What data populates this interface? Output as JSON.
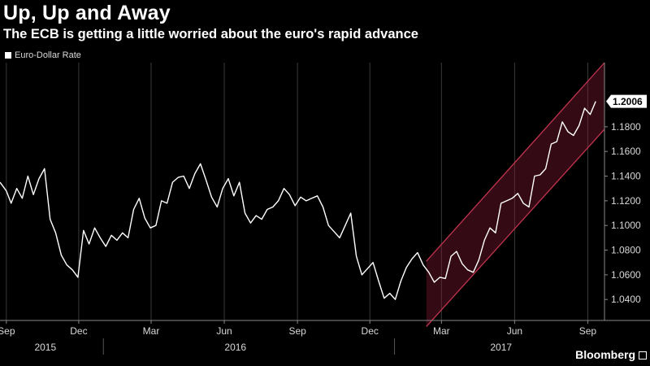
{
  "chart_data": {
    "type": "line",
    "title": "Up, Up and Away",
    "subtitle": "The ECB is getting a little worried about the euro's rapid advance",
    "source": "Bloomberg",
    "legend_position": "top-left",
    "grid": "vertical",
    "series": [
      {
        "name": "Euro-Dollar Rate",
        "color": "#ffffff",
        "last_value_label": "1.2006",
        "points": [
          [
            "2015-08-24",
            1.135
          ],
          [
            "2015-09-01",
            1.128
          ],
          [
            "2015-09-07",
            1.118
          ],
          [
            "2015-09-14",
            1.13
          ],
          [
            "2015-09-21",
            1.122
          ],
          [
            "2015-09-28",
            1.14
          ],
          [
            "2015-10-05",
            1.125
          ],
          [
            "2015-10-12",
            1.138
          ],
          [
            "2015-10-19",
            1.146
          ],
          [
            "2015-10-26",
            1.105
          ],
          [
            "2015-11-02",
            1.094
          ],
          [
            "2015-11-09",
            1.076
          ],
          [
            "2015-11-16",
            1.068
          ],
          [
            "2015-11-23",
            1.064
          ],
          [
            "2015-11-30",
            1.058
          ],
          [
            "2015-12-07",
            1.096
          ],
          [
            "2015-12-14",
            1.085
          ],
          [
            "2015-12-21",
            1.098
          ],
          [
            "2015-12-28",
            1.09
          ],
          [
            "2016-01-04",
            1.083
          ],
          [
            "2016-01-11",
            1.092
          ],
          [
            "2016-01-18",
            1.088
          ],
          [
            "2016-01-25",
            1.094
          ],
          [
            "2016-02-01",
            1.09
          ],
          [
            "2016-02-08",
            1.113
          ],
          [
            "2016-02-15",
            1.122
          ],
          [
            "2016-02-22",
            1.106
          ],
          [
            "2016-02-29",
            1.098
          ],
          [
            "2016-03-07",
            1.1
          ],
          [
            "2016-03-14",
            1.12
          ],
          [
            "2016-03-21",
            1.118
          ],
          [
            "2016-03-28",
            1.135
          ],
          [
            "2016-04-04",
            1.139
          ],
          [
            "2016-04-11",
            1.14
          ],
          [
            "2016-04-18",
            1.13
          ],
          [
            "2016-04-25",
            1.142
          ],
          [
            "2016-05-02",
            1.15
          ],
          [
            "2016-05-09",
            1.137
          ],
          [
            "2016-05-16",
            1.123
          ],
          [
            "2016-05-23",
            1.115
          ],
          [
            "2016-05-30",
            1.13
          ],
          [
            "2016-06-06",
            1.138
          ],
          [
            "2016-06-13",
            1.124
          ],
          [
            "2016-06-20",
            1.135
          ],
          [
            "2016-06-27",
            1.11
          ],
          [
            "2016-07-04",
            1.102
          ],
          [
            "2016-07-11",
            1.108
          ],
          [
            "2016-07-18",
            1.105
          ],
          [
            "2016-07-25",
            1.113
          ],
          [
            "2016-08-01",
            1.115
          ],
          [
            "2016-08-08",
            1.12
          ],
          [
            "2016-08-15",
            1.13
          ],
          [
            "2016-08-22",
            1.125
          ],
          [
            "2016-08-29",
            1.116
          ],
          [
            "2016-09-05",
            1.123
          ],
          [
            "2016-09-12",
            1.12
          ],
          [
            "2016-09-19",
            1.122
          ],
          [
            "2016-09-26",
            1.124
          ],
          [
            "2016-10-03",
            1.115
          ],
          [
            "2016-10-10",
            1.1
          ],
          [
            "2016-10-17",
            1.095
          ],
          [
            "2016-10-24",
            1.09
          ],
          [
            "2016-10-31",
            1.1
          ],
          [
            "2016-11-07",
            1.11
          ],
          [
            "2016-11-14",
            1.075
          ],
          [
            "2016-11-21",
            1.06
          ],
          [
            "2016-11-28",
            1.065
          ],
          [
            "2016-12-05",
            1.07
          ],
          [
            "2016-12-12",
            1.055
          ],
          [
            "2016-12-19",
            1.041
          ],
          [
            "2016-12-26",
            1.045
          ],
          [
            "2017-01-02",
            1.04
          ],
          [
            "2017-01-09",
            1.055
          ],
          [
            "2017-01-16",
            1.066
          ],
          [
            "2017-01-23",
            1.073
          ],
          [
            "2017-01-30",
            1.078
          ],
          [
            "2017-02-06",
            1.068
          ],
          [
            "2017-02-13",
            1.062
          ],
          [
            "2017-02-20",
            1.054
          ],
          [
            "2017-02-27",
            1.058
          ],
          [
            "2017-03-06",
            1.057
          ],
          [
            "2017-03-13",
            1.075
          ],
          [
            "2017-03-20",
            1.079
          ],
          [
            "2017-03-27",
            1.069
          ],
          [
            "2017-04-03",
            1.064
          ],
          [
            "2017-04-10",
            1.062
          ],
          [
            "2017-04-17",
            1.072
          ],
          [
            "2017-04-24",
            1.088
          ],
          [
            "2017-05-01",
            1.098
          ],
          [
            "2017-05-08",
            1.094
          ],
          [
            "2017-05-15",
            1.118
          ],
          [
            "2017-05-22",
            1.12
          ],
          [
            "2017-05-29",
            1.122
          ],
          [
            "2017-06-05",
            1.126
          ],
          [
            "2017-06-12",
            1.118
          ],
          [
            "2017-06-19",
            1.115
          ],
          [
            "2017-06-26",
            1.14
          ],
          [
            "2017-07-03",
            1.141
          ],
          [
            "2017-07-10",
            1.146
          ],
          [
            "2017-07-17",
            1.166
          ],
          [
            "2017-07-24",
            1.168
          ],
          [
            "2017-07-31",
            1.184
          ],
          [
            "2017-08-07",
            1.176
          ],
          [
            "2017-08-14",
            1.173
          ],
          [
            "2017-08-21",
            1.181
          ],
          [
            "2017-08-28",
            1.195
          ],
          [
            "2017-09-04",
            1.19
          ],
          [
            "2017-09-11",
            1.2006
          ]
        ]
      }
    ],
    "channel": {
      "color": "#8a1d35",
      "x_start": "2017-02-10",
      "lower_start": 1.018,
      "upper_start": 1.071,
      "x_end": "2017-09-22",
      "lower_end": 1.178,
      "upper_end": 1.232
    },
    "y_axis": {
      "range": [
        1.023,
        1.232
      ],
      "ticks": [
        "1.0400",
        "1.0600",
        "1.0800",
        "1.1000",
        "1.1200",
        "1.1400",
        "1.1600",
        "1.1800"
      ]
    },
    "x_axis": {
      "range": [
        "2015-08-24",
        "2017-09-22"
      ],
      "ticks": [
        {
          "label": "Sep",
          "date": "2015-09-01"
        },
        {
          "label": "Dec",
          "date": "2015-12-01"
        },
        {
          "label": "Mar",
          "date": "2016-03-01"
        },
        {
          "label": "Jun",
          "date": "2016-06-01"
        },
        {
          "label": "Sep",
          "date": "2016-09-01"
        },
        {
          "label": "Dec",
          "date": "2016-12-01"
        },
        {
          "label": "Mar",
          "date": "2017-03-01"
        },
        {
          "label": "Jun",
          "date": "2017-06-01"
        },
        {
          "label": "Sep",
          "date": "2017-09-01"
        }
      ],
      "years": [
        {
          "label": "2015",
          "date": "2015-10-20"
        },
        {
          "label": "2016",
          "date": "2016-06-15"
        },
        {
          "label": "2017",
          "date": "2017-05-15"
        }
      ],
      "year_dividers": [
        "2016-01-01",
        "2017-01-01"
      ]
    }
  }
}
